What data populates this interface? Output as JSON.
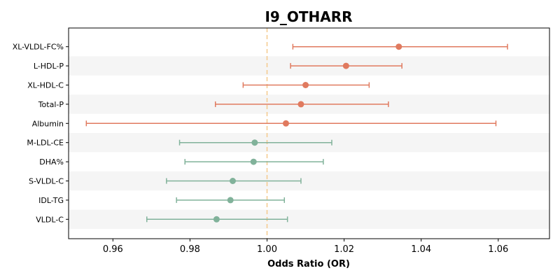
{
  "chart_data": {
    "type": "forest",
    "title": "I9_OTHARR",
    "xlabel": "Odds Ratio (OR)",
    "ylabel": "",
    "xlim": [
      0.9485,
      1.0733
    ],
    "xticks": [
      0.96,
      0.98,
      1.0,
      1.02,
      1.04,
      1.06
    ],
    "xtick_labels": [
      "0.96",
      "0.98",
      "1.00",
      "1.02",
      "1.04",
      "1.06"
    ],
    "reference_line": 1.0,
    "reference_color": "#f5c98c",
    "positive_color": "#e07a5f",
    "negative_color": "#81b29a",
    "band_color": "#f5f5f5",
    "grid": false,
    "rows": [
      {
        "label": "XL-VLDL-FC%",
        "or": 1.0342,
        "lower": 1.0067,
        "upper": 1.0624
      },
      {
        "label": "L-HDL-P",
        "or": 1.0205,
        "lower": 1.0061,
        "upper": 1.035
      },
      {
        "label": "XL-HDL-C",
        "or": 1.01,
        "lower": 0.9938,
        "upper": 1.0265
      },
      {
        "label": "Total-P",
        "or": 1.0088,
        "lower": 0.9866,
        "upper": 1.0315
      },
      {
        "label": "Albumin",
        "or": 1.0049,
        "lower": 0.9531,
        "upper": 1.0594
      },
      {
        "label": "M-LDL-CE",
        "or": 0.9968,
        "lower": 0.9773,
        "upper": 1.0168
      },
      {
        "label": "DHA%",
        "or": 0.9965,
        "lower": 0.9787,
        "upper": 1.0146
      },
      {
        "label": "S-VLDL-C",
        "or": 0.9911,
        "lower": 0.9739,
        "upper": 1.0088
      },
      {
        "label": "IDL-TG",
        "or": 0.9905,
        "lower": 0.9765,
        "upper": 1.0045
      },
      {
        "label": "VLDL-C",
        "or": 0.9869,
        "lower": 0.9688,
        "upper": 1.0053
      }
    ]
  }
}
